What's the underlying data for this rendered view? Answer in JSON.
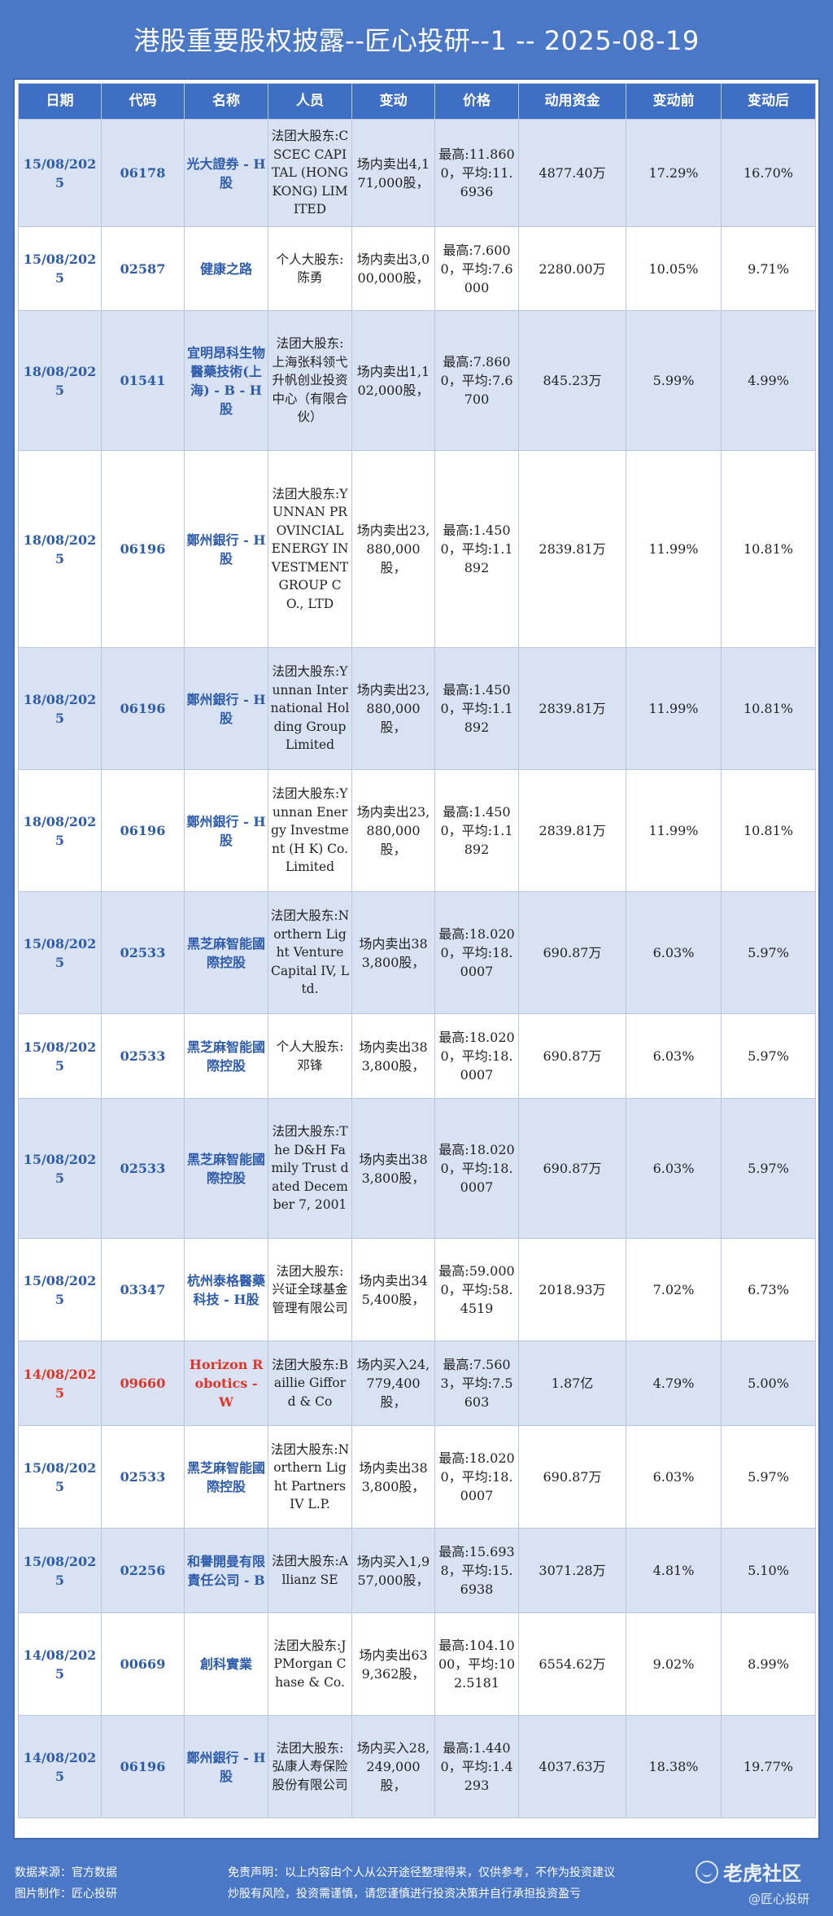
{
  "title": "港股重要股权披露--匠心投研--1 -- 2025-08-19",
  "headers": [
    "日期",
    "代码",
    "名称",
    "人员",
    "变动",
    "价格",
    "动用资金",
    "变动前",
    "变动后"
  ],
  "rows": [
    {
      "date": "15/08/2025",
      "code": "06178",
      "name": "光大證券 - H股",
      "person": "法团大股东:CSCEC CAPITAL (HONG KONG) LIMITED",
      "change": "场内卖出4,171,000股，",
      "price": "最高:11.8600，平均:11.6936",
      "funds": "4877.40万",
      "before": "17.29%",
      "after": "16.70%"
    },
    {
      "date": "15/08/2025",
      "code": "02587",
      "name": "健康之路",
      "person": "个人大股东:陈勇",
      "change": "场内卖出3,000,000股，",
      "price": "最高:7.6000，平均:7.6000",
      "funds": "2280.00万",
      "before": "10.05%",
      "after": "9.71%"
    },
    {
      "date": "18/08/2025",
      "code": "01541",
      "name": "宜明昂科生物醫藥技術(上海) - B - H股",
      "person": "法团大股东:上海张科领弋升帆创业投资中心（有限合伙）",
      "change": "场内卖出1,102,000股，",
      "price": "最高:7.8600，平均:7.6700",
      "funds": "845.23万",
      "before": "5.99%",
      "after": "4.99%"
    },
    {
      "date": "18/08/2025",
      "code": "06196",
      "name": "鄭州銀行 - H股",
      "person": "法团大股东:YUNNAN PROVINCIAL ENERGY INVESTMENT GROUP CO., LTD",
      "change": "场内卖出23,880,000股，",
      "price": "最高:1.4500，平均:1.1892",
      "funds": "2839.81万",
      "before": "11.99%",
      "after": "10.81%"
    },
    {
      "date": "18/08/2025",
      "code": "06196",
      "name": "鄭州銀行 - H股",
      "person": "法团大股东:Yunnan International Holding Group Limited",
      "change": "场内卖出23,880,000股，",
      "price": "最高:1.4500，平均:1.1892",
      "funds": "2839.81万",
      "before": "11.99%",
      "after": "10.81%"
    },
    {
      "date": "18/08/2025",
      "code": "06196",
      "name": "鄭州銀行 - H股",
      "person": "法团大股东:Yunnan Energy Investment (H K) Co. Limited",
      "change": "场内卖出23,880,000股，",
      "price": "最高:1.4500，平均:1.1892",
      "funds": "2839.81万",
      "before": "11.99%",
      "after": "10.81%"
    },
    {
      "date": "15/08/2025",
      "code": "02533",
      "name": "黑芝麻智能國際控股",
      "person": "法团大股东:Northern Light Venture Capital IV, Ltd.",
      "change": "场内卖出383,800股，",
      "price": "最高:18.0200，平均:18.0007",
      "funds": "690.87万",
      "before": "6.03%",
      "after": "5.97%"
    },
    {
      "date": "15/08/2025",
      "code": "02533",
      "name": "黑芝麻智能國際控股",
      "person": "个人大股东:邓锋",
      "change": "场内卖出383,800股，",
      "price": "最高:18.0200，平均:18.0007",
      "funds": "690.87万",
      "before": "6.03%",
      "after": "5.97%"
    },
    {
      "date": "15/08/2025",
      "code": "02533",
      "name": "黑芝麻智能國際控股",
      "person": "法团大股东:The D&H Family Trust dated December 7, 2001",
      "change": "场内卖出383,800股，",
      "price": "最高:18.0200，平均:18.0007",
      "funds": "690.87万",
      "before": "6.03%",
      "after": "5.97%"
    },
    {
      "date": "15/08/2025",
      "code": "03347",
      "name": "杭州泰格醫藥科技 - H股",
      "person": "法团大股东:兴证全球基金管理有限公司",
      "change": "场内卖出345,400股，",
      "price": "最高:59.0000，平均:58.4519",
      "funds": "2018.93万",
      "before": "7.02%",
      "after": "6.73%"
    },
    {
      "date": "14/08/2025",
      "code": "09660",
      "name": "Horizon Robotics - W",
      "person": "法团大股东:Baillie Gifford & Co",
      "change": "场内买入24,779,400股，",
      "price": "最高:7.5603，平均:7.5603",
      "funds": "1.87亿",
      "before": "4.79%",
      "after": "5.00%"
    },
    {
      "date": "15/08/2025",
      "code": "02533",
      "name": "黑芝麻智能國際控股",
      "person": "法团大股东:Northern Light Partners IV L.P.",
      "change": "场内卖出383,800股，",
      "price": "最高:18.0200，平均:18.0007",
      "funds": "690.87万",
      "before": "6.03%",
      "after": "5.97%"
    },
    {
      "date": "15/08/2025",
      "code": "02256",
      "name": "和譽開曼有限責任公司 - B",
      "person": "法团大股东:Allianz SE",
      "change": "场内买入1,957,000股，",
      "price": "最高:15.6938，平均:15.6938",
      "funds": "3071.28万",
      "before": "4.81%",
      "after": "5.10%"
    },
    {
      "date": "14/08/2025",
      "code": "00669",
      "name": "創科實業",
      "person": "法团大股东:JPMorgan Chase & Co.",
      "change": "场内卖出639,362股，",
      "price": "最高:104.1000，平均:102.5181",
      "funds": "6554.62万",
      "before": "9.02%",
      "after": "8.99%"
    },
    {
      "date": "14/08/2025",
      "code": "06196",
      "name": "鄭州銀行 - H股",
      "person": "法团大股东:弘康人寿保险股份有限公司",
      "change": "场内买入28,249,000股，",
      "price": "最高:1.4400，平均:1.4293",
      "funds": "4037.63万",
      "before": "18.38%",
      "after": "19.77%"
    }
  ],
  "highlight_color": "#e03524",
  "footer": {
    "source": "数据来源：官方数据",
    "maker": "图片制作：匠心投研",
    "disclaimer": "免责声明：以上内容由个人从公开途径整理得来，仅供参考，不作为投资建议",
    "risk": "炒股有风险，投资需谨慎，请您谨慎进行投资决策并自行承担投资盈亏",
    "logo_text": "老虎社区",
    "watermark": "@匠心投研"
  }
}
